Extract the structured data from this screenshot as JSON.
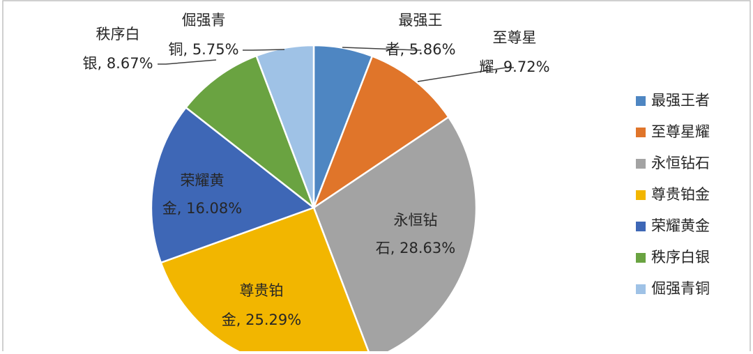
{
  "chart_data": {
    "type": "pie",
    "legend_position": "right",
    "start_angle_deg": 0,
    "direction": "clockwise",
    "slices": [
      {
        "name": "最强王者",
        "value": 5.86,
        "label_line1": "最强王",
        "label_line2": "者, 5.86%",
        "color": "#4E86C2"
      },
      {
        "name": "至尊星耀",
        "value": 9.72,
        "label_line1": "至尊星",
        "label_line2": "耀, 9.72%",
        "color": "#E0752A"
      },
      {
        "name": "永恒钻石",
        "value": 28.63,
        "label_line1": "永恒钻",
        "label_line2": "石, 28.63%",
        "color": "#A3A3A3"
      },
      {
        "name": "尊贵铂金",
        "value": 25.29,
        "label_line1": "尊贵铂",
        "label_line2": "金, 25.29%",
        "color": "#F2B600"
      },
      {
        "name": "荣耀黄金",
        "value": 16.08,
        "label_line1": "荣耀黄",
        "label_line2": "金, 16.08%",
        "color": "#3E67B6"
      },
      {
        "name": "秩序白银",
        "value": 8.67,
        "label_line1": "秩序白",
        "label_line2": "银, 8.67%",
        "color": "#6AA341"
      },
      {
        "name": "倔强青铜",
        "value": 5.75,
        "label_line1": "倔强青",
        "label_line2": "铜, 5.75%",
        "color": "#9FC2E6"
      }
    ]
  }
}
